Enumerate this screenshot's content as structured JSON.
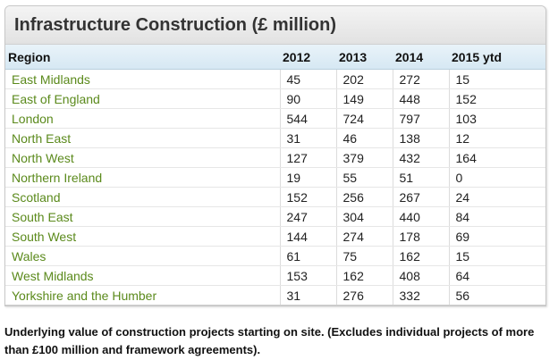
{
  "chart_data": {
    "type": "table",
    "title": "Infrastructure Construction (£ million)",
    "columns": [
      "Region",
      "2012",
      "2013",
      "2014",
      "2015 ytd"
    ],
    "rows": [
      [
        "East Midlands",
        45,
        202,
        272,
        15
      ],
      [
        "East of England",
        90,
        149,
        448,
        152
      ],
      [
        "London",
        544,
        724,
        797,
        103
      ],
      [
        "North East",
        31,
        46,
        138,
        12
      ],
      [
        "North West",
        127,
        379,
        432,
        164
      ],
      [
        "Northern Ireland",
        19,
        55,
        51,
        0
      ],
      [
        "Scotland",
        152,
        256,
        267,
        24
      ],
      [
        "South East",
        247,
        304,
        440,
        84
      ],
      [
        "South West",
        144,
        274,
        178,
        69
      ],
      [
        "Wales",
        61,
        75,
        162,
        15
      ],
      [
        "West Midlands",
        153,
        162,
        408,
        64
      ],
      [
        "Yorkshire and the Humber",
        31,
        276,
        332,
        56
      ]
    ],
    "footnote": "Underlying value of construction projects starting on site. (Excludes individual projects of more than £100 million and framework agreements).",
    "colors": {
      "region_text": "#5b8a1c",
      "header_bg": "#dcebf5"
    }
  }
}
